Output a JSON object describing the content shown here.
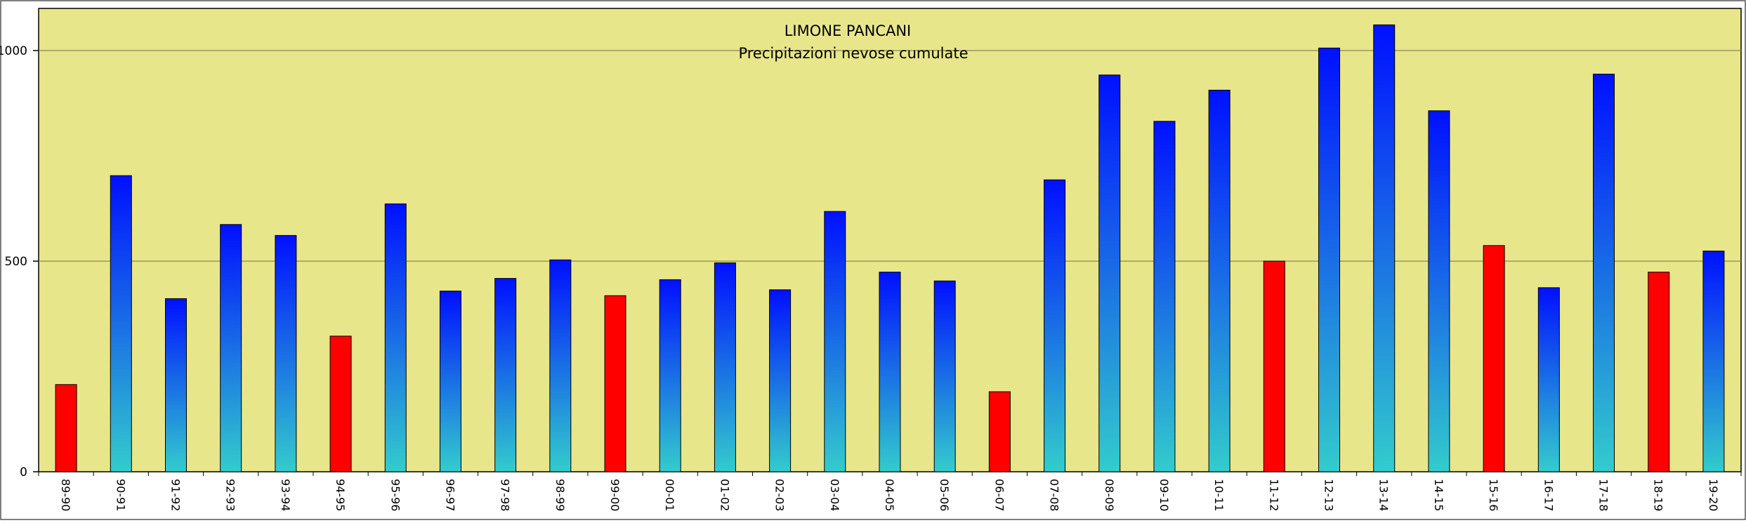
{
  "chart_data": {
    "type": "bar",
    "title": "LIMONE PANCANI",
    "subtitle": "Precipitazioni nevose cumulate",
    "xlabel": "",
    "ylabel": "",
    "ylim": [
      0,
      1100
    ],
    "yticks": [
      0,
      500,
      1000
    ],
    "grid": true,
    "plot_background": "#E8E68A",
    "colors": {
      "normal_top": "#0010FF",
      "normal_bottom": "#33CCCC",
      "highlight": "#FF0000",
      "grid": "#8A8A50"
    },
    "categories": [
      "89-90",
      "90-91",
      "91-92",
      "92-93",
      "93-94",
      "94-95",
      "95-96",
      "96-97",
      "97-98",
      "98-99",
      "99-00",
      "00-01",
      "01-02",
      "02-03",
      "03-04",
      "04-05",
      "05-06",
      "06-07",
      "07-08",
      "08-09",
      "09-10",
      "10-11",
      "11-12",
      "12-13",
      "13-14",
      "14-15",
      "15-16",
      "16-17",
      "17-18",
      "18-19",
      "19-20"
    ],
    "values": [
      207,
      703,
      411,
      587,
      561,
      322,
      636,
      429,
      459,
      503,
      418,
      456,
      496,
      432,
      618,
      474,
      453,
      190,
      693,
      942,
      832,
      906,
      500,
      1006,
      1061,
      857,
      537,
      437,
      944,
      474,
      524
    ],
    "highlight": [
      true,
      false,
      false,
      false,
      false,
      true,
      false,
      false,
      false,
      false,
      true,
      false,
      false,
      false,
      false,
      false,
      false,
      true,
      false,
      false,
      false,
      false,
      true,
      false,
      false,
      false,
      true,
      false,
      false,
      true,
      false
    ]
  }
}
